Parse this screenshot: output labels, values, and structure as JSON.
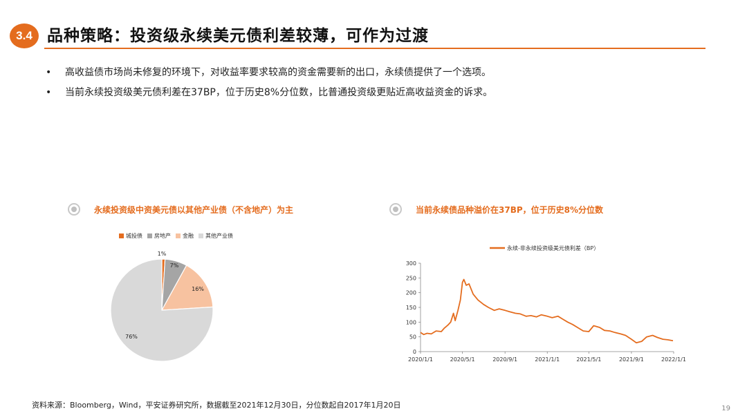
{
  "header": {
    "section_number": "3.4",
    "title": "品种策略：投资级永续美元债利差较薄，可作为过渡"
  },
  "bullets": [
    "高收益债市场尚未修复的环境下，对收益率要求较高的资金需要新的出口，永续债提供了一个选项。",
    "当前永续投资级美元债利差在37BP，位于历史8%分位数，比普通投资级更贴近高收益资金的诉求。"
  ],
  "bullet_symbol": "•",
  "left_panel": {
    "title": "永续投资级中资美元债以其他产业债（不含地产）为主"
  },
  "right_panel": {
    "title": "当前永续债品种溢价在37BP，位于历史8%分位数"
  },
  "chart_data": [
    {
      "type": "pie",
      "legend": [
        "城投债",
        "房地产",
        "金融",
        "其他产业债"
      ],
      "legend_position": "top",
      "values": [
        1,
        7,
        16,
        76
      ],
      "labels": [
        "1%",
        "7%",
        "16%",
        "76%"
      ],
      "colors": [
        "#e46c1e",
        "#a5a5a5",
        "#f7c2a0",
        "#d9d9d9"
      ]
    },
    {
      "type": "line",
      "series": [
        {
          "name": "永续-非永续投资级美元债利差（BP）",
          "color": "#e46c1e",
          "points": [
            [
              "2020-01-01",
              65
            ],
            [
              "2020-01-10",
              58
            ],
            [
              "2020-01-20",
              62
            ],
            [
              "2020-02-01",
              60
            ],
            [
              "2020-02-15",
              70
            ],
            [
              "2020-03-01",
              68
            ],
            [
              "2020-03-10",
              80
            ],
            [
              "2020-03-20",
              90
            ],
            [
              "2020-03-28",
              100
            ],
            [
              "2020-04-05",
              130
            ],
            [
              "2020-04-10",
              105
            ],
            [
              "2020-04-18",
              140
            ],
            [
              "2020-04-25",
              175
            ],
            [
              "2020-05-01",
              235
            ],
            [
              "2020-05-05",
              245
            ],
            [
              "2020-05-12",
              225
            ],
            [
              "2020-05-20",
              230
            ],
            [
              "2020-06-01",
              195
            ],
            [
              "2020-06-15",
              175
            ],
            [
              "2020-07-01",
              160
            ],
            [
              "2020-07-15",
              150
            ],
            [
              "2020-08-01",
              140
            ],
            [
              "2020-08-15",
              145
            ],
            [
              "2020-09-01",
              140
            ],
            [
              "2020-09-15",
              135
            ],
            [
              "2020-10-01",
              130
            ],
            [
              "2020-10-15",
              128
            ],
            [
              "2020-11-01",
              120
            ],
            [
              "2020-11-15",
              122
            ],
            [
              "2020-12-01",
              118
            ],
            [
              "2020-12-15",
              125
            ],
            [
              "2021-01-01",
              120
            ],
            [
              "2021-01-15",
              115
            ],
            [
              "2021-02-01",
              120
            ],
            [
              "2021-02-15",
              110
            ],
            [
              "2021-03-01",
              100
            ],
            [
              "2021-03-15",
              92
            ],
            [
              "2021-04-01",
              80
            ],
            [
              "2021-04-15",
              70
            ],
            [
              "2021-05-01",
              68
            ],
            [
              "2021-05-15",
              88
            ],
            [
              "2021-06-01",
              82
            ],
            [
              "2021-06-15",
              72
            ],
            [
              "2021-07-01",
              70
            ],
            [
              "2021-07-15",
              65
            ],
            [
              "2021-08-01",
              60
            ],
            [
              "2021-08-15",
              55
            ],
            [
              "2021-09-01",
              42
            ],
            [
              "2021-09-15",
              30
            ],
            [
              "2021-10-01",
              35
            ],
            [
              "2021-10-15",
              50
            ],
            [
              "2021-11-01",
              55
            ],
            [
              "2021-11-15",
              48
            ],
            [
              "2021-12-01",
              42
            ],
            [
              "2021-12-15",
              40
            ],
            [
              "2021-12-30",
              37
            ]
          ]
        }
      ],
      "x_ticks": [
        "2020/1/1",
        "2020/5/1",
        "2020/9/1",
        "2021/1/1",
        "2021/5/1",
        "2021/9/1",
        "2022/1/1"
      ],
      "y_ticks": [
        "0",
        "50",
        "100",
        "150",
        "200",
        "250",
        "300"
      ],
      "ylim": [
        0,
        300
      ],
      "xlim": [
        "2020-01-01",
        "2022-01-01"
      ],
      "legend_position": "top"
    }
  ],
  "footer": {
    "source": "资料来源：Bloomberg，Wind，平安证券研究所，数据截至2021年12月30日，分位数起自2017年1月20日",
    "page_number": "19"
  }
}
